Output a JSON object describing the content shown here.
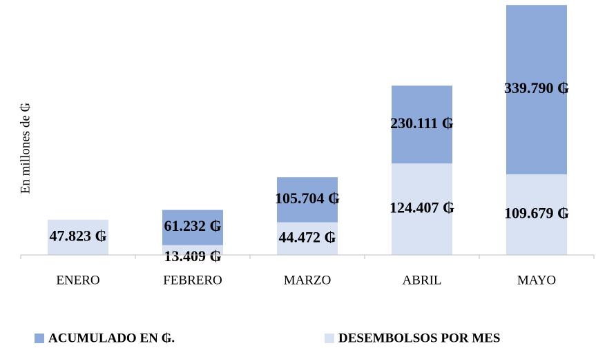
{
  "chart_data": {
    "type": "overlap_bar",
    "y_label": "En millones de ₲",
    "categories": [
      "ENERO",
      "FEBRERO",
      "MARZO",
      "ABRIL",
      "MAYO"
    ],
    "series": [
      {
        "name": "ACUMULADO EN ₲.",
        "color": "#8eaadb",
        "values": [
          47823,
          61232,
          105704,
          230111,
          339790
        ],
        "value_labels": [
          null,
          "61.232 ₲",
          "105.704 ₲",
          "230.111 ₲",
          "339.790 ₲"
        ]
      },
      {
        "name": "DESEMBOLSOS POR MES",
        "color": "#d9e2f3",
        "values": [
          47823,
          13409,
          44472,
          124407,
          109679
        ],
        "value_labels": [
          "47.823 ₲",
          "13.409 ₲",
          "44.472 ₲",
          "124.407 ₲",
          "109.679 ₲"
        ]
      }
    ],
    "ylim": [
      0,
      340000
    ],
    "legend": "bottom"
  }
}
